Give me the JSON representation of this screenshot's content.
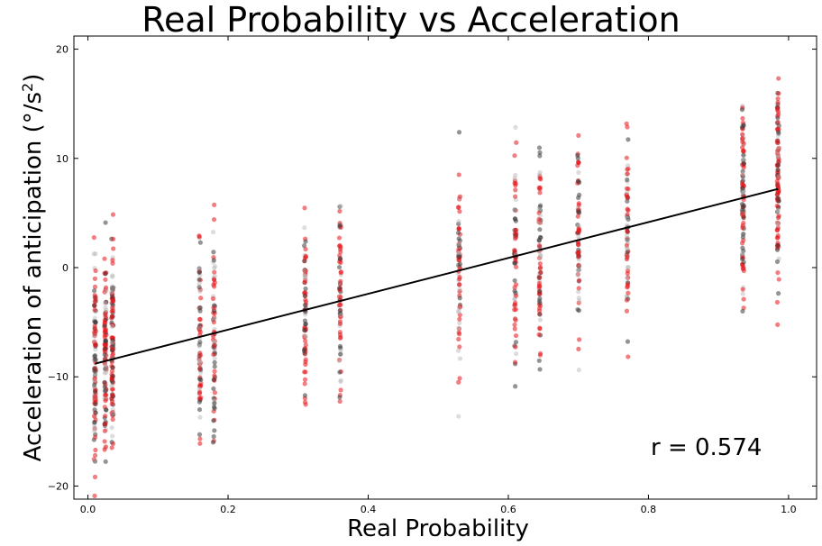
{
  "chart_data": {
    "type": "scatter",
    "title": "Real Probability vs Acceleration",
    "xlabel": "Real Probability",
    "ylabel_main": "Acceleration of anticipation (°/s",
    "ylabel_sup": "2",
    "ylabel_end": ")",
    "xlim": [
      -0.02,
      1.04
    ],
    "ylim": [
      -21.2,
      21.2
    ],
    "xticks": [
      0.0,
      0.2,
      0.4,
      0.6,
      0.8,
      1.0
    ],
    "xtick_labels": [
      "0.0",
      "0.2",
      "0.4",
      "0.6",
      "0.8",
      "1.0"
    ],
    "yticks": [
      -20,
      -10,
      0,
      10,
      20
    ],
    "ytick_labels": [
      "−20",
      "−10",
      "0",
      "10",
      "20"
    ],
    "grid": false,
    "x_levels": [
      0.01,
      0.025,
      0.035,
      0.16,
      0.18,
      0.31,
      0.36,
      0.53,
      0.61,
      0.645,
      0.7,
      0.77,
      0.935,
      0.985
    ],
    "series": [
      {
        "color": "#e8141a",
        "opacity": 0.55
      },
      {
        "color": "#3c3c3c",
        "opacity": 0.55
      },
      {
        "color": "#b4b4b4",
        "opacity": 0.45
      }
    ],
    "regression_line": {
      "x": [
        0.01,
        0.985
      ],
      "y": [
        -8.8,
        7.2
      ],
      "color": "#000000"
    },
    "annotation": "r = 0.574"
  }
}
